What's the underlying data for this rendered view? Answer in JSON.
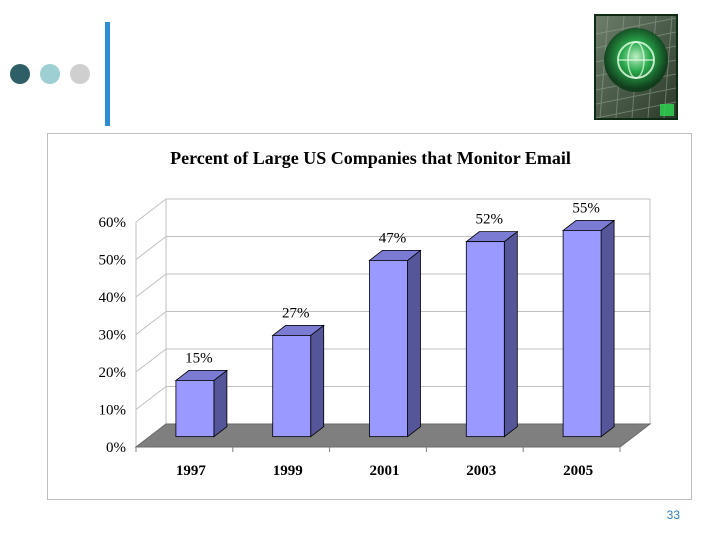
{
  "slide": {
    "number": "33",
    "colors": {
      "dot1": "#2f5f66",
      "dot2": "#9dcfd3",
      "dot3": "#cfcfcf",
      "accent_bar": "#2d8fd1",
      "page_number": "#2f7fbf"
    },
    "logo_icon": "globe-keyboard-icon"
  },
  "chart_data": {
    "type": "bar",
    "title": "Percent of Large US Companies that Monitor Email",
    "categories": [
      "1997",
      "1999",
      "2001",
      "2003",
      "2005"
    ],
    "values": [
      15,
      27,
      47,
      52,
      55
    ],
    "data_labels": [
      "15%",
      "27%",
      "47%",
      "52%",
      "55%"
    ],
    "yticks": [
      "0%",
      "10%",
      "20%",
      "30%",
      "40%",
      "50%",
      "60%"
    ],
    "ylim": [
      0,
      60
    ],
    "xlabel": "",
    "ylabel": "",
    "grid": true,
    "style": "3d",
    "colors": {
      "bar_front": "#9999ff",
      "bar_top": "#7b7bd3",
      "bar_side": "#555599",
      "floor": "#7f7f7f",
      "wall_line": "#c0c0c0"
    }
  }
}
